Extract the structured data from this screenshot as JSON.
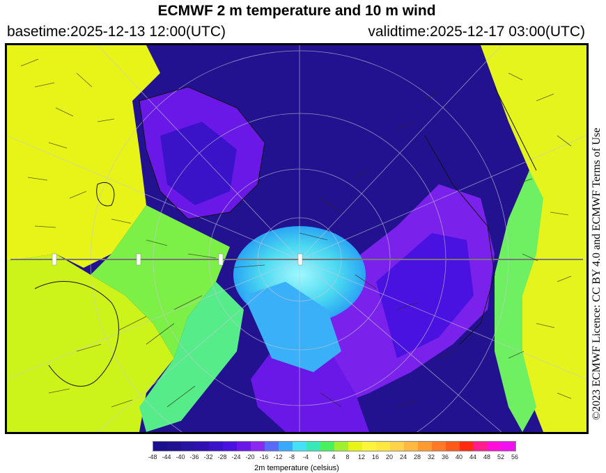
{
  "header": {
    "title": "ECMWF 2 m temperature and 10 m wind",
    "basetime": "basetime:2025-12-13 12:00(UTC)",
    "validtime": "validtime:2025-12-17 03:00(UTC)"
  },
  "licence": "©2023 ECMWF Licence: CC BY 4.0 and ECMWF Terms of Use",
  "legend": {
    "label": "2m temperature (celsius)",
    "ticks": [
      "-48",
      "-44",
      "-40",
      "-36",
      "-32",
      "-28",
      "-24",
      "-20",
      "-16",
      "-12",
      "-8",
      "-4",
      "0",
      "4",
      "8",
      "12",
      "16",
      "20",
      "24",
      "28",
      "32",
      "36",
      "40",
      "44",
      "48",
      "52",
      "56"
    ],
    "colors": [
      "#1a0f8c",
      "#21128f",
      "#2815a0",
      "#3010b0",
      "#3a12c8",
      "#4a12e0",
      "#6a18e8",
      "#8a2af0",
      "#5a6af8",
      "#3aa8ff",
      "#46e0f8",
      "#38e8b8",
      "#48f060",
      "#9ef030",
      "#e8f418",
      "#fbf53c",
      "#ffe840",
      "#ffd24a",
      "#ffb840",
      "#ff9a30",
      "#ff7a28",
      "#ff5a1a",
      "#ff2a10",
      "#ff1e8c",
      "#ff10d8",
      "#f010f0"
    ]
  },
  "map": {
    "projection": "polar stereographic, North Pole centered",
    "variables": [
      "2 m temperature (shaded)",
      "10 m wind (arrows)"
    ]
  }
}
